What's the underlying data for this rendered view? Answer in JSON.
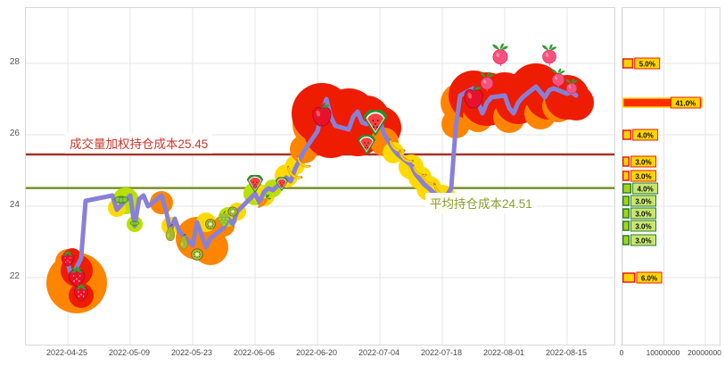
{
  "page": {
    "background": "#ffffff",
    "grid_color": "#e4e4e4",
    "frame_border": "#d8d8d8"
  },
  "chart_data": [
    {
      "type": "line",
      "title": "",
      "grid_color": "#e4e4e4",
      "line_color": "#8880d8",
      "ylim": [
        20.1,
        29.55
      ],
      "y_ticks": [
        28,
        26,
        24,
        22
      ],
      "x_tick_labels": [
        "2022-04-25",
        "2022-05-09",
        "2022-05-23",
        "2022-06-06",
        "2022-06-20",
        "2022-07-04",
        "2022-07-18",
        "2022-08-01",
        "2022-08-15"
      ],
      "hlines": [
        {
          "value": 25.45,
          "label": "成交量加权持仓成本25.45",
          "color": "#a83226",
          "label_color": "#c9372b"
        },
        {
          "value": 24.51,
          "label": "平均持仓成本24.51",
          "color": "#7d8f2a",
          "label_color": "#8a9e2f"
        }
      ],
      "x": [
        "2022-04-25",
        "2022-04-26",
        "2022-04-27",
        "2022-04-28",
        "2022-04-29",
        "2022-05-05",
        "2022-05-06",
        "2022-05-09",
        "2022-05-10",
        "2022-05-11",
        "2022-05-12",
        "2022-05-13",
        "2022-05-16",
        "2022-05-17",
        "2022-05-18",
        "2022-05-19",
        "2022-05-20",
        "2022-05-23",
        "2022-05-24",
        "2022-05-25",
        "2022-05-26",
        "2022-05-27",
        "2022-05-30",
        "2022-05-31",
        "2022-06-01",
        "2022-06-02",
        "2022-06-06",
        "2022-06-07",
        "2022-06-08",
        "2022-06-09",
        "2022-06-10",
        "2022-06-13",
        "2022-06-14",
        "2022-06-15",
        "2022-06-16",
        "2022-06-17",
        "2022-06-20",
        "2022-06-21",
        "2022-06-22",
        "2022-06-23",
        "2022-06-24",
        "2022-06-27",
        "2022-06-28",
        "2022-06-29",
        "2022-06-30",
        "2022-07-01",
        "2022-07-04",
        "2022-07-05",
        "2022-07-06",
        "2022-07-07",
        "2022-07-08",
        "2022-07-11",
        "2022-07-12",
        "2022-07-13",
        "2022-07-14",
        "2022-07-15",
        "2022-07-18",
        "2022-07-19",
        "2022-07-20",
        "2022-07-21",
        "2022-07-22",
        "2022-07-25",
        "2022-07-26",
        "2022-07-27",
        "2022-07-28",
        "2022-07-29",
        "2022-08-01",
        "2022-08-02",
        "2022-08-03",
        "2022-08-04",
        "2022-08-05",
        "2022-08-08",
        "2022-08-09",
        "2022-08-10",
        "2022-08-11",
        "2022-08-12",
        "2022-08-15",
        "2022-08-16",
        "2022-08-17"
      ],
      "series": [
        {
          "name": "price",
          "values": [
            22.4,
            21.95,
            22.3,
            22.55,
            24.15,
            24.3,
            23.9,
            24.3,
            23.45,
            24.2,
            24.3,
            24.0,
            24.3,
            23.9,
            23.3,
            23.65,
            23.3,
            22.9,
            23.55,
            23.2,
            22.85,
            23.1,
            23.4,
            23.65,
            23.5,
            23.85,
            24.35,
            24.1,
            24.4,
            24.5,
            24.45,
            24.8,
            24.7,
            25.05,
            25.3,
            25.55,
            26.1,
            26.6,
            27.0,
            26.5,
            26.25,
            26.15,
            26.5,
            26.65,
            26.35,
            26.3,
            26.4,
            26.0,
            25.8,
            25.6,
            25.45,
            25.15,
            24.9,
            24.75,
            24.6,
            24.5,
            24.15,
            24.3,
            24.5,
            26.2,
            27.1,
            27.3,
            26.9,
            26.6,
            26.9,
            27.05,
            27.1,
            26.75,
            26.6,
            26.9,
            27.05,
            27.35,
            27.2,
            27.05,
            27.25,
            27.3,
            27.15,
            27.2,
            27.1
          ]
        }
      ],
      "bubbles": [
        [
          "2022-04-25",
          22.45,
          "#ff8400",
          14
        ],
        [
          "2022-04-27",
          21.85,
          "#ff8400",
          34
        ],
        [
          "2022-04-27",
          22.2,
          "#ee1c00",
          18
        ],
        [
          "2022-04-28",
          21.5,
          "#ee1c00",
          14
        ],
        [
          "2022-04-26",
          22.55,
          "#ee1c00",
          11
        ],
        [
          "2022-05-08",
          24.15,
          "#b9e000",
          15
        ],
        [
          "2022-05-06",
          23.95,
          "#ffd900",
          10
        ],
        [
          "2022-05-10",
          23.5,
          "#b9e000",
          9
        ],
        [
          "2022-05-16",
          24.1,
          "#ff8400",
          13
        ],
        [
          "2022-05-18",
          23.45,
          "#ffd900",
          10
        ],
        [
          "2022-05-23",
          23.3,
          "#ee1c00",
          13
        ],
        [
          "2022-05-24",
          23.1,
          "#ff8400",
          24
        ],
        [
          "2022-05-27",
          22.85,
          "#ff8400",
          20
        ],
        [
          "2022-05-26",
          23.55,
          "#ffd900",
          11
        ],
        [
          "2022-05-30",
          23.45,
          "#ff8400",
          12
        ],
        [
          "2022-05-31",
          23.7,
          "#b9e000",
          11
        ],
        [
          "2022-06-02",
          23.85,
          "#ffd900",
          10
        ],
        [
          "2022-06-06",
          24.35,
          "#b9e000",
          13
        ],
        [
          "2022-06-08",
          24.3,
          "#ffd900",
          12
        ],
        [
          "2022-06-10",
          24.5,
          "#b9e000",
          10
        ],
        [
          "2022-06-13",
          24.85,
          "#ffd900",
          13
        ],
        [
          "2022-06-15",
          25.15,
          "#ffd900",
          11
        ],
        [
          "2022-06-17",
          25.6,
          "#ff8400",
          16
        ],
        [
          "2022-06-20",
          26.3,
          "#ff8400",
          28
        ],
        [
          "2022-06-21",
          26.6,
          "#ee1c00",
          34
        ],
        [
          "2022-06-23",
          26.1,
          "#ee1c00",
          30
        ],
        [
          "2022-06-27",
          26.5,
          "#ee1c00",
          32
        ],
        [
          "2022-06-29",
          26.1,
          "#ee1c00",
          28
        ],
        [
          "2022-07-01",
          26.45,
          "#ee1c00",
          26
        ],
        [
          "2022-07-04",
          26.2,
          "#ee1c00",
          24
        ],
        [
          "2022-07-05",
          25.8,
          "#ff8400",
          16
        ],
        [
          "2022-07-07",
          25.5,
          "#ffd900",
          12
        ],
        [
          "2022-07-11",
          25.1,
          "#ffd900",
          14
        ],
        [
          "2022-07-13",
          24.8,
          "#ffd900",
          13
        ],
        [
          "2022-07-15",
          24.5,
          "#ffd900",
          14
        ],
        [
          "2022-07-18",
          24.2,
          "#ffd900",
          16
        ],
        [
          "2022-07-19",
          24.1,
          "#b9e000",
          9
        ],
        [
          "2022-07-21",
          26.3,
          "#ff8400",
          16
        ],
        [
          "2022-07-22",
          26.9,
          "#ff8400",
          22
        ],
        [
          "2022-07-25",
          27.1,
          "#ee1c00",
          28
        ],
        [
          "2022-07-26",
          26.5,
          "#ff8400",
          17
        ],
        [
          "2022-07-28",
          27.0,
          "#ee1c00",
          30
        ],
        [
          "2022-08-01",
          27.05,
          "#ee1c00",
          28
        ],
        [
          "2022-08-02",
          26.5,
          "#ff8400",
          18
        ],
        [
          "2022-08-04",
          26.95,
          "#ee1c00",
          26
        ],
        [
          "2022-08-08",
          27.25,
          "#ee1c00",
          30
        ],
        [
          "2022-08-09",
          26.6,
          "#ff8400",
          18
        ],
        [
          "2022-08-11",
          27.1,
          "#ee1c00",
          27
        ],
        [
          "2022-08-13",
          26.8,
          "#ff8400",
          18
        ],
        [
          "2022-08-15",
          27.05,
          "#ee1c00",
          25
        ],
        [
          "2022-08-17",
          26.9,
          "#ee1c00",
          20
        ]
      ],
      "fruit_markers": [
        [
          "2022-04-25",
          22.55,
          "strawberry",
          22
        ],
        [
          "2022-04-27",
          22.05,
          "strawberry",
          28
        ],
        [
          "2022-04-28",
          21.6,
          "strawberry",
          24
        ],
        [
          "2022-05-07",
          24.15,
          "peas",
          22
        ],
        [
          "2022-05-10",
          23.5,
          "peas",
          14
        ],
        [
          "2022-05-18",
          23.25,
          "pear",
          22
        ],
        [
          "2022-05-21",
          23.0,
          "pear",
          20
        ],
        [
          "2022-05-24",
          22.65,
          "kiwi",
          17
        ],
        [
          "2022-05-27",
          23.5,
          "kiwi",
          15
        ],
        [
          "2022-05-30",
          23.65,
          "grapes",
          18
        ],
        [
          "2022-06-01",
          23.85,
          "kiwi",
          14
        ],
        [
          "2022-06-06",
          24.6,
          "watermelon",
          22
        ],
        [
          "2022-06-08",
          24.15,
          "carrot",
          18
        ],
        [
          "2022-06-12",
          24.6,
          "watermelon",
          17
        ],
        [
          "2022-06-15",
          24.95,
          "banana",
          20
        ],
        [
          "2022-06-17",
          25.25,
          "banana",
          18
        ],
        [
          "2022-06-21",
          26.55,
          "apple",
          30
        ],
        [
          "2022-07-01",
          25.7,
          "watermelon",
          24
        ],
        [
          "2022-07-03",
          26.3,
          "watermelon",
          32
        ],
        [
          "2022-07-08",
          25.7,
          "banana",
          21
        ],
        [
          "2022-07-10",
          25.4,
          "banana",
          19
        ],
        [
          "2022-07-13",
          25.0,
          "banana",
          18
        ],
        [
          "2022-07-15",
          24.75,
          "banana",
          17
        ],
        [
          "2022-07-18",
          24.45,
          "banana",
          21
        ],
        [
          "2022-07-25",
          27.05,
          "apple",
          30
        ],
        [
          "2022-07-28",
          27.5,
          "radish",
          22
        ],
        [
          "2022-07-31",
          28.25,
          "radish",
          26
        ],
        [
          "2022-08-11",
          28.25,
          "radish",
          24
        ],
        [
          "2022-08-13",
          27.6,
          "radish",
          22
        ],
        [
          "2022-08-16",
          27.35,
          "radish",
          19
        ]
      ]
    },
    {
      "type": "bar",
      "orientation": "horizontal",
      "title": "",
      "xlim": [
        0,
        20000000
      ],
      "x_ticks": [
        {
          "value": 0,
          "label": "0"
        },
        {
          "value": 10000000,
          "label": "10000000"
        },
        {
          "value": 20000000,
          "label": "20000000"
        }
      ],
      "bars": [
        {
          "price": 28.0,
          "value": 2300000,
          "label": "5.0%",
          "fill": "#ffd400",
          "stroke": "#ee1c00",
          "label_bg": "#ffd400",
          "label_border": "#ee1c00"
        },
        {
          "price": 26.9,
          "value": 19000000,
          "label": "41.0%",
          "fill": "#ff2d00",
          "stroke": "#ffd400",
          "label_bg": "#ffd400",
          "label_border": "#ee1c00"
        },
        {
          "price": 26.0,
          "value": 1850000,
          "label": "4.0%",
          "fill": "#ffd400",
          "stroke": "#ee1c00",
          "label_bg": "#ffd400",
          "label_border": "#ee1c00"
        },
        {
          "price": 25.25,
          "value": 1400000,
          "label": "3.0%",
          "fill": "#ffd400",
          "stroke": "#ee1c00",
          "label_bg": "#ffd400",
          "label_border": "#ee1c00"
        },
        {
          "price": 24.85,
          "value": 1400000,
          "label": "3.0%",
          "fill": "#ffd400",
          "stroke": "#ee1c00",
          "label_bg": "#ffd400",
          "label_border": "#ee1c00"
        },
        {
          "price": 24.5,
          "value": 1850000,
          "label": "4.0%",
          "fill": "#a5d610",
          "stroke": "#2e7d32",
          "label_bg": "#c8e66e",
          "label_border": "#2e7d32"
        },
        {
          "price": 24.15,
          "value": 1400000,
          "label": "3.0%",
          "fill": "#a5d610",
          "stroke": "#2e7d32",
          "label_bg": "#c8e66e",
          "label_border": "#2e7d32"
        },
        {
          "price": 23.8,
          "value": 1400000,
          "label": "3.0%",
          "fill": "#a5d610",
          "stroke": "#2e7d32",
          "label_bg": "#c8e66e",
          "label_border": "#2e7d32"
        },
        {
          "price": 23.45,
          "value": 1400000,
          "label": "3.0%",
          "fill": "#a5d610",
          "stroke": "#2e7d32",
          "label_bg": "#c8e66e",
          "label_border": "#2e7d32"
        },
        {
          "price": 23.05,
          "value": 1400000,
          "label": "3.0%",
          "fill": "#a5d610",
          "stroke": "#2e7d32",
          "label_bg": "#c8e66e",
          "label_border": "#2e7d32"
        },
        {
          "price": 22.0,
          "value": 2800000,
          "label": "6.0%",
          "fill": "#ffd400",
          "stroke": "#ee1c00",
          "label_bg": "#ffd400",
          "label_border": "#ee1c00"
        }
      ]
    }
  ]
}
